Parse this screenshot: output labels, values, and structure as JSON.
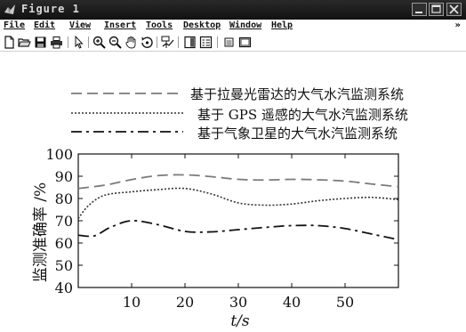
{
  "window": {
    "title": "Figure 1",
    "menu": [
      "File",
      "Edit",
      "View",
      "Insert",
      "Tools",
      "Desktop",
      "Window",
      "Help"
    ],
    "toolbar_icons": [
      "new-file-icon",
      "open-folder-icon",
      "save-icon",
      "print-icon",
      "pointer-icon",
      "zoom-in-icon",
      "zoom-out-icon",
      "pan-hand-icon",
      "rotate-icon",
      "data-cursor-icon",
      "colorbar-icon",
      "legend-icon",
      "hide-plot-tools-icon",
      "show-plot-tools-icon"
    ],
    "more_chevron": "»"
  },
  "chart_data": {
    "type": "line",
    "title": "",
    "xlabel": "t/s",
    "ylabel": "监测准确率 /%",
    "xlim": [
      0,
      60
    ],
    "ylim": [
      40,
      100
    ],
    "xticks": [
      10,
      20,
      30,
      40,
      50
    ],
    "yticks": [
      40,
      50,
      60,
      70,
      80,
      90,
      100
    ],
    "grid": false,
    "legend_position": "top-right",
    "series": [
      {
        "name": "基于拉曼光雷达的大气水汽监测系统",
        "style": "dashed",
        "color": "#7a7a7a",
        "x": [
          0,
          5,
          10,
          15,
          20,
          25,
          30,
          35,
          40,
          45,
          50,
          55,
          60
        ],
        "y": [
          84.5,
          86,
          88.5,
          90.3,
          90.6,
          89.8,
          88.6,
          88.3,
          88.6,
          88.4,
          87.8,
          86.5,
          85.3
        ]
      },
      {
        "name": "基于 GPS 遥感的大气水汽监测系统",
        "style": "dotted",
        "color": "#333333",
        "x": [
          0,
          2,
          5,
          10,
          15,
          20,
          25,
          30,
          35,
          40,
          45,
          50,
          55,
          60
        ],
        "y": [
          71,
          77,
          81.5,
          83,
          84,
          84.5,
          82,
          78,
          77,
          77.5,
          79,
          80,
          80.5,
          79.5
        ]
      },
      {
        "name": "基于气象卫星的大气水汽监测系统",
        "style": "dash-dot",
        "color": "#111111",
        "x": [
          0,
          3,
          6,
          10,
          15,
          20,
          25,
          30,
          35,
          40,
          45,
          50,
          55,
          60
        ],
        "y": [
          63.5,
          63.2,
          67,
          70,
          68.2,
          65.2,
          65,
          66,
          67,
          67.8,
          67.8,
          66.5,
          64,
          61.5
        ]
      }
    ]
  }
}
